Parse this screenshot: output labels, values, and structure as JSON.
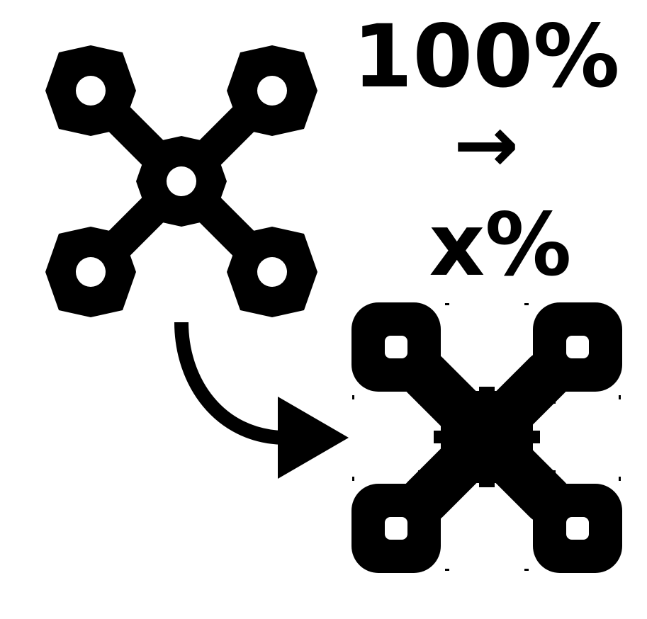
{
  "labels": {
    "from_value": "100%",
    "arrow_glyph": "→",
    "to_value": "x%"
  },
  "icons": {
    "original": "quadcopter-drone-icon",
    "rescaled": "pixelated-quadcopter-drone-icon",
    "transition": "curved-arrow-icon"
  },
  "colors": {
    "foreground": "#000000",
    "background": "#ffffff"
  }
}
